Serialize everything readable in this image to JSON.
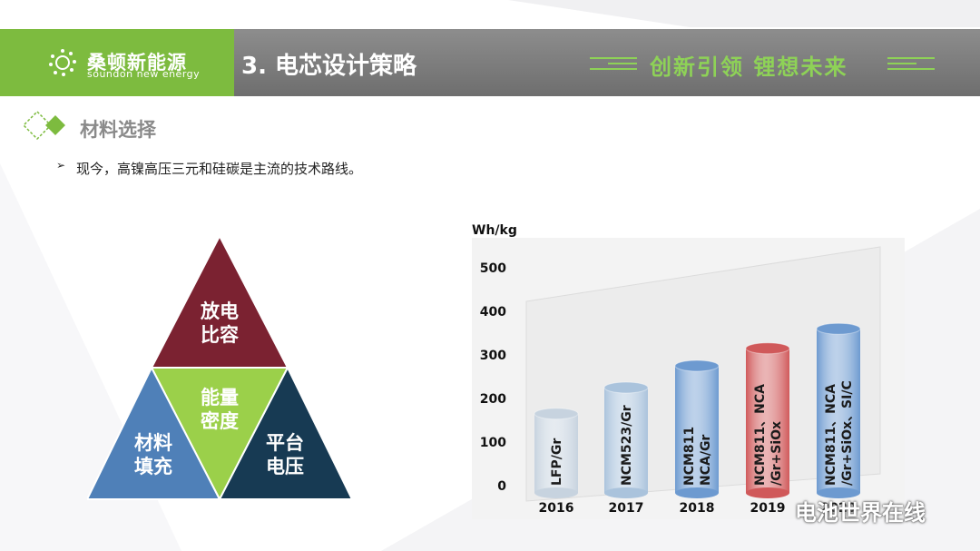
{
  "header": {
    "logo_cn": "桑顿新能源",
    "logo_en": "soundon new energy",
    "title": "3. 电芯设计策略",
    "slogan": "创新引领  锂想未来"
  },
  "section": {
    "title": "材料选择",
    "bullet": "现今，高镍高压三元和硅碳是主流的技术路线。"
  },
  "triangle": {
    "top": [
      "放电",
      "比容"
    ],
    "center": [
      "能量",
      "密度"
    ],
    "left": [
      "材料",
      "填充"
    ],
    "right": [
      "平台",
      "电压"
    ],
    "colors": {
      "top": "#7b2231",
      "center": "#9bd04a",
      "left": "#4f80b8",
      "right": "#173a53"
    }
  },
  "watermark": "电池世界在线",
  "chart_data": {
    "type": "bar",
    "ylabel": "Wh/kg",
    "ylim": [
      0,
      500
    ],
    "yticks": [
      0,
      100,
      200,
      300,
      400,
      500
    ],
    "categories": [
      "2016",
      "2017",
      "2018",
      "2019",
      "2020"
    ],
    "values": [
      165,
      225,
      275,
      315,
      360
    ],
    "bar_labels": [
      [
        "LFP/Gr"
      ],
      [
        "NCM523/Gr"
      ],
      [
        "NCM811",
        "NCA/Gr"
      ],
      [
        "NCM811、NCA",
        "/Gr+SiOx"
      ],
      [
        "NCM811、NCA",
        "/Gr+SiOx、SI/C"
      ]
    ],
    "bar_colors": [
      "#c7d3df",
      "#aac3dc",
      "#6d9ad0",
      "#d0595a",
      "#6d9ad0"
    ],
    "grid": false
  }
}
